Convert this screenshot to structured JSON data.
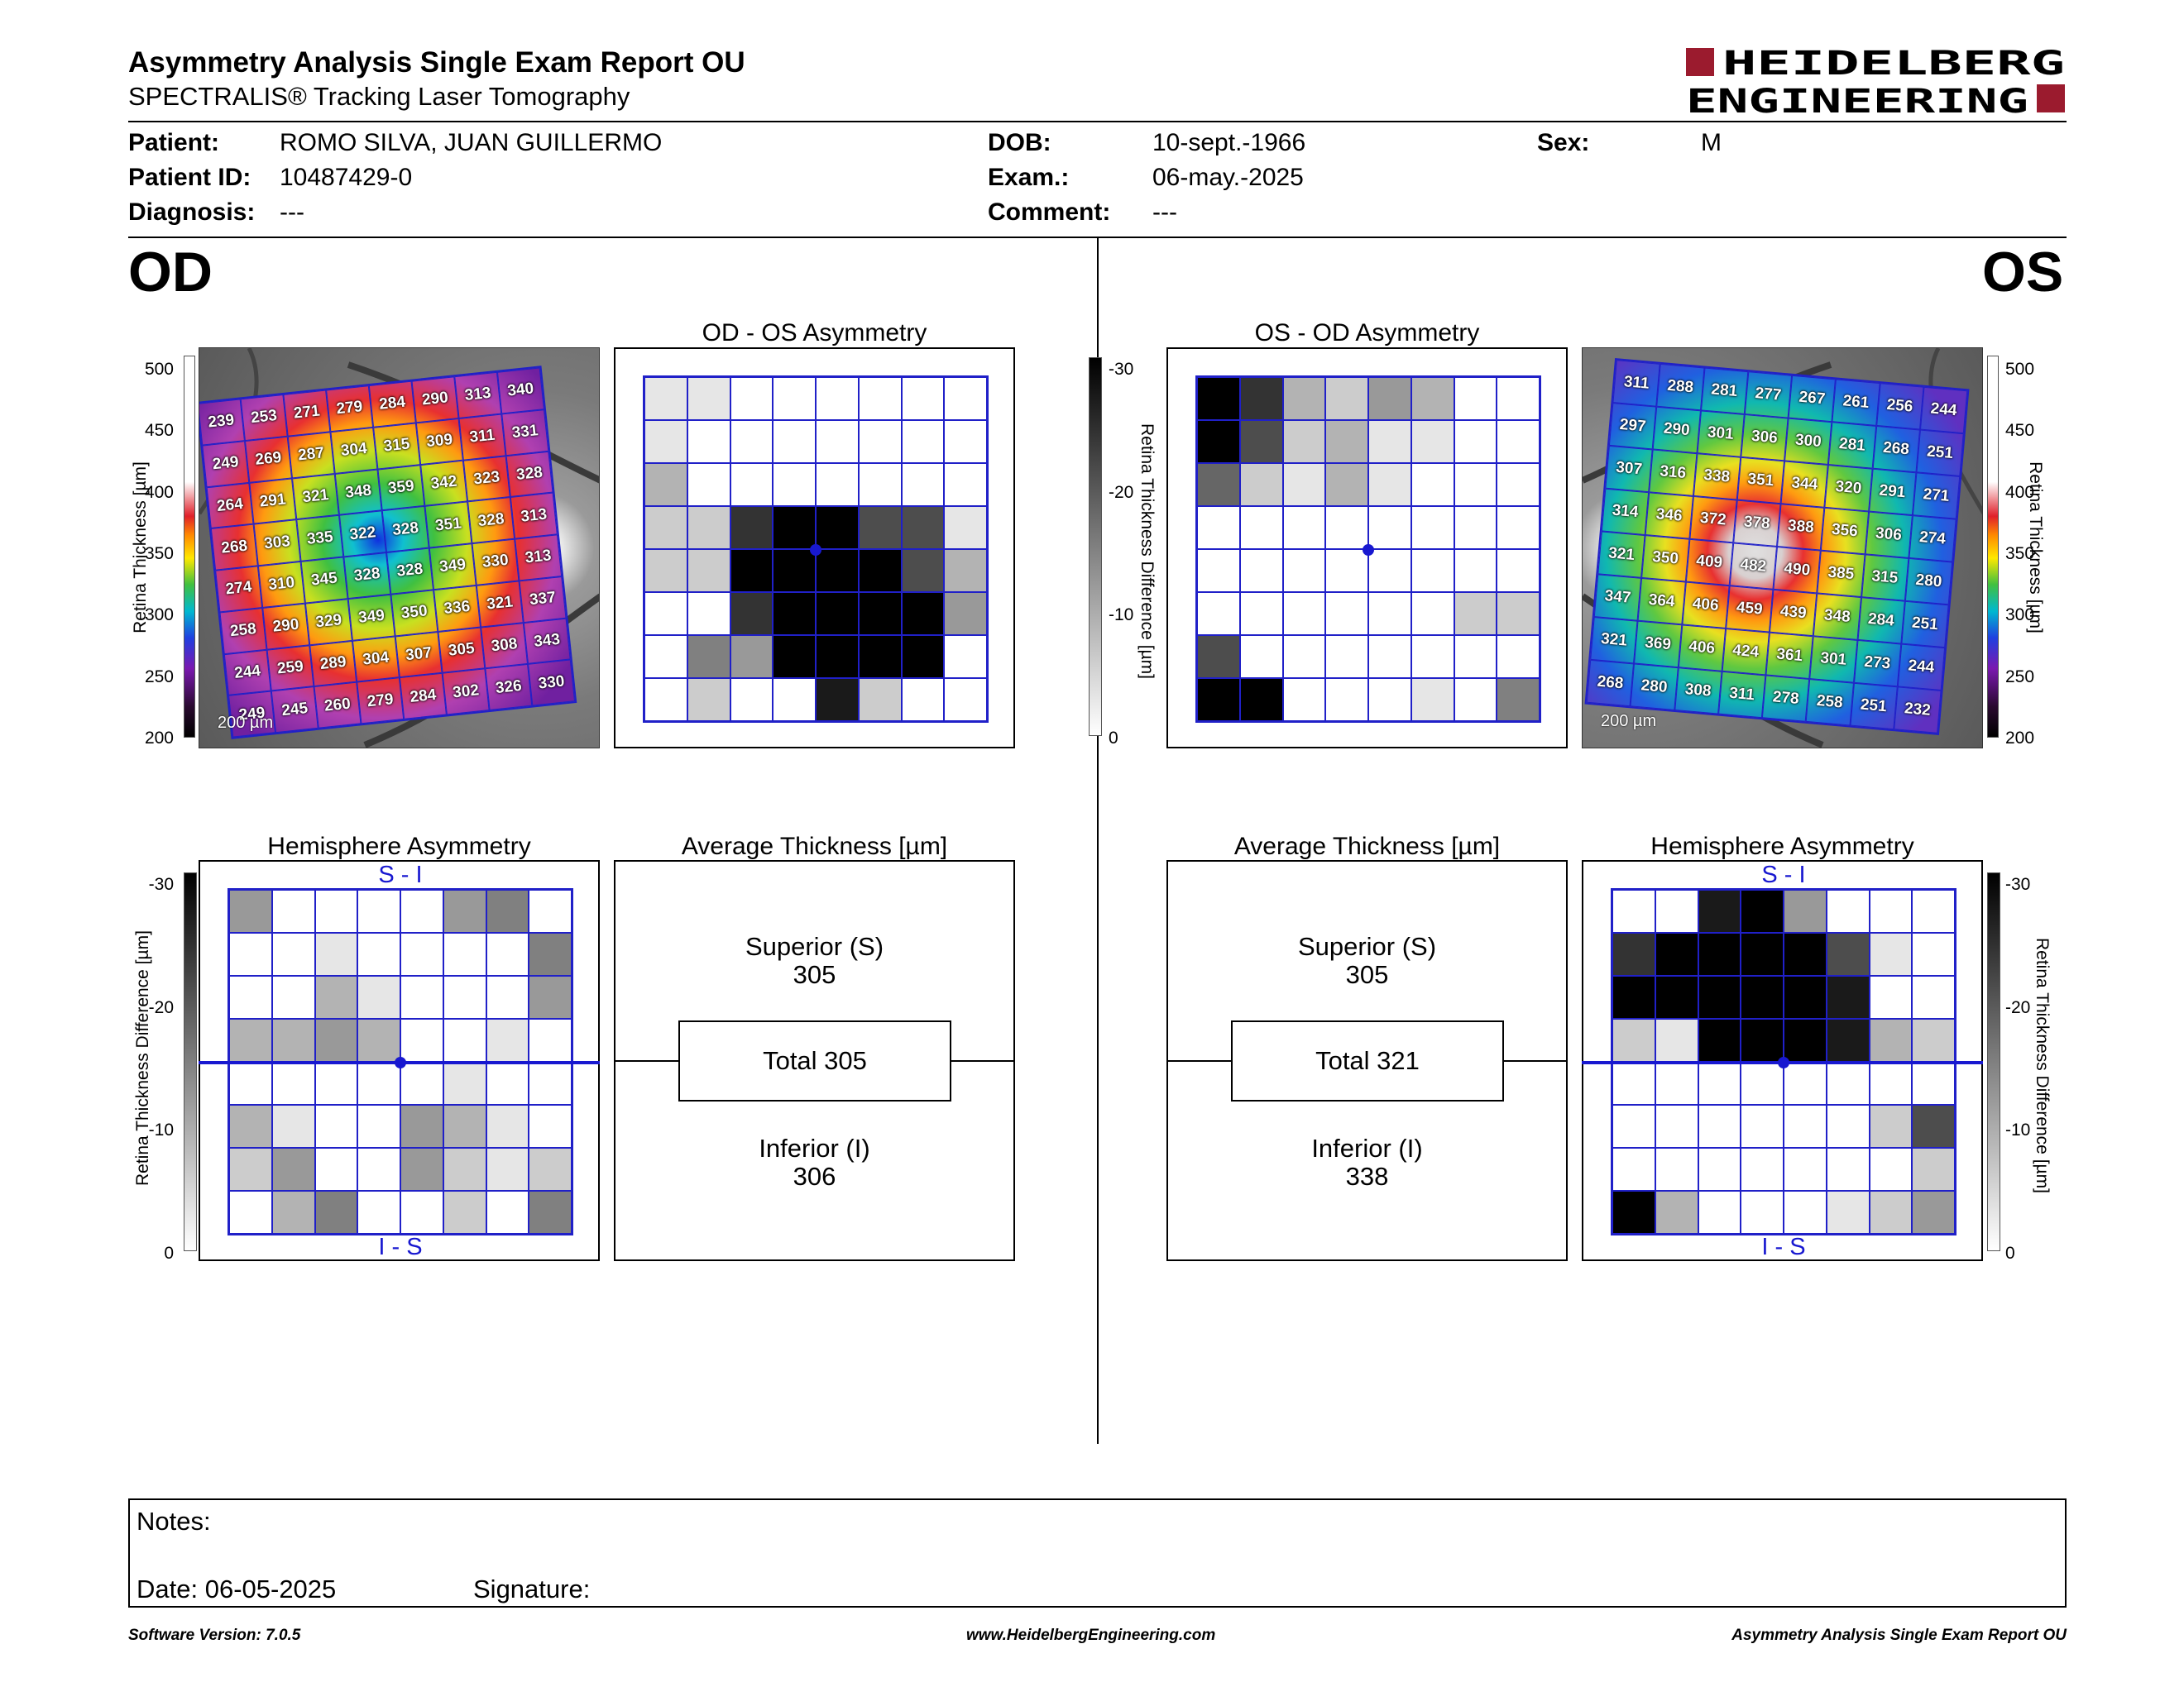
{
  "header": {
    "title": "Asymmetry Analysis Single Exam Report OU",
    "subtitle": "SPECTRALIS® Tracking Laser Tomography",
    "logo_line1": "HEIDELBERG",
    "logo_line2": "ENGINEERING"
  },
  "patient": {
    "patient_label": "Patient:",
    "patient_value": "ROMO SILVA, JUAN GUILLERMO",
    "dob_label": "DOB:",
    "dob_value": "10-sept.-1966",
    "sex_label": "Sex:",
    "sex_value": "M",
    "id_label": "Patient ID:",
    "id_value": "10487429-0",
    "exam_label": "Exam.:",
    "exam_value": "06-may.-2025",
    "diagnosis_label": "Diagnosis:",
    "diagnosis_value": "---",
    "comment_label": "Comment:",
    "comment_value": "---"
  },
  "od": {
    "eye_label": "OD",
    "thickness_axis_label": "Retina Thickness [µm]",
    "thickness_ticks": [
      "500",
      "450",
      "400",
      "350",
      "300",
      "250",
      "200"
    ],
    "scale_label": "200 µm",
    "thickness_map": [
      [
        239,
        253,
        271,
        279,
        284,
        290,
        313,
        340
      ],
      [
        249,
        269,
        287,
        304,
        315,
        309,
        311,
        331
      ],
      [
        264,
        291,
        321,
        348,
        359,
        342,
        323,
        328
      ],
      [
        268,
        303,
        335,
        322,
        328,
        351,
        328,
        313
      ],
      [
        274,
        310,
        345,
        328,
        328,
        349,
        330,
        313
      ],
      [
        258,
        290,
        329,
        349,
        350,
        336,
        321,
        337
      ],
      [
        244,
        259,
        289,
        304,
        307,
        305,
        308,
        343
      ],
      [
        249,
        245,
        260,
        279,
        284,
        302,
        326,
        330
      ]
    ],
    "asym_title": "OD - OS Asymmetry",
    "asym_grid": [
      [
        1,
        1,
        0,
        0,
        0,
        0,
        0,
        0
      ],
      [
        1,
        0,
        0,
        0,
        0,
        0,
        0,
        0
      ],
      [
        3,
        0,
        0,
        0,
        0,
        0,
        0,
        0
      ],
      [
        2,
        2,
        8,
        10,
        10,
        7,
        7,
        1
      ],
      [
        2,
        2,
        10,
        10,
        10,
        10,
        7,
        3
      ],
      [
        0,
        0,
        8,
        10,
        10,
        10,
        10,
        4
      ],
      [
        0,
        5,
        4,
        10,
        10,
        10,
        10,
        0
      ],
      [
        0,
        2,
        0,
        0,
        9,
        2,
        0,
        0
      ]
    ],
    "hemi_title": "Hemisphere Asymmetry",
    "hemi_top": "S - I",
    "hemi_bottom": "I - S",
    "hemi_grid": [
      [
        4,
        0,
        0,
        0,
        0,
        4,
        5,
        0
      ],
      [
        0,
        0,
        1,
        0,
        0,
        0,
        0,
        5
      ],
      [
        0,
        0,
        3,
        1,
        0,
        0,
        0,
        4
      ],
      [
        3,
        3,
        4,
        3,
        0,
        0,
        1,
        0
      ],
      [
        0,
        0,
        0,
        0,
        0,
        1,
        0,
        0
      ],
      [
        3,
        1,
        0,
        0,
        4,
        3,
        1,
        0
      ],
      [
        2,
        4,
        0,
        0,
        4,
        2,
        1,
        2
      ],
      [
        0,
        3,
        5,
        0,
        0,
        2,
        0,
        5
      ]
    ],
    "avg_title": "Average Thickness [µm]",
    "superior_label": "Superior (S)",
    "superior_value": "305",
    "total_label": "Total 305",
    "inferior_label": "Inferior (I)",
    "inferior_value": "306"
  },
  "os": {
    "eye_label": "OS",
    "thickness_axis_label": "Retina Thickness [µm]",
    "thickness_ticks": [
      "500",
      "450",
      "400",
      "350",
      "300",
      "250",
      "200"
    ],
    "scale_label": "200 µm",
    "thickness_map": [
      [
        311,
        288,
        281,
        277,
        267,
        261,
        256,
        244
      ],
      [
        297,
        290,
        301,
        306,
        300,
        281,
        268,
        251
      ],
      [
        307,
        316,
        338,
        351,
        344,
        320,
        291,
        271
      ],
      [
        314,
        346,
        372,
        378,
        388,
        356,
        306,
        274
      ],
      [
        321,
        350,
        409,
        482,
        490,
        385,
        315,
        280
      ],
      [
        347,
        364,
        406,
        459,
        439,
        348,
        284,
        251
      ],
      [
        321,
        369,
        406,
        424,
        361,
        301,
        273,
        244
      ],
      [
        268,
        280,
        308,
        311,
        278,
        258,
        251,
        232
      ]
    ],
    "asym_title": "OS - OD Asymmetry",
    "asym_grid": [
      [
        10,
        8,
        3,
        2,
        4,
        3,
        0,
        0
      ],
      [
        10,
        7,
        2,
        3,
        1,
        1,
        0,
        0
      ],
      [
        6,
        2,
        1,
        3,
        1,
        0,
        0,
        0
      ],
      [
        0,
        0,
        0,
        0,
        0,
        0,
        0,
        0
      ],
      [
        0,
        0,
        0,
        0,
        0,
        0,
        0,
        0
      ],
      [
        0,
        0,
        0,
        0,
        0,
        0,
        2,
        2
      ],
      [
        7,
        0,
        0,
        0,
        0,
        0,
        0,
        0
      ],
      [
        10,
        10,
        0,
        0,
        0,
        1,
        0,
        5
      ]
    ],
    "hemi_title": "Hemisphere Asymmetry",
    "hemi_top": "S - I",
    "hemi_bottom": "I - S",
    "hemi_grid": [
      [
        0,
        0,
        9,
        10,
        4,
        0,
        0,
        0
      ],
      [
        8,
        10,
        10,
        10,
        10,
        7,
        1,
        0
      ],
      [
        10,
        10,
        10,
        10,
        10,
        9,
        0,
        0
      ],
      [
        2,
        1,
        10,
        10,
        10,
        9,
        3,
        2
      ],
      [
        0,
        0,
        0,
        0,
        0,
        0,
        0,
        0
      ],
      [
        0,
        0,
        0,
        0,
        0,
        0,
        2,
        7
      ],
      [
        0,
        0,
        0,
        0,
        0,
        0,
        0,
        2
      ],
      [
        10,
        3,
        0,
        0,
        0,
        1,
        2,
        4
      ]
    ],
    "avg_title": "Average Thickness [µm]",
    "superior_label": "Superior (S)",
    "superior_value": "305",
    "total_label": "Total 321",
    "inferior_label": "Inferior (I)",
    "inferior_value": "338"
  },
  "difference_scale": {
    "axis_label": "Retina Thickness Difference [µm]",
    "ticks": [
      "-30",
      "-20",
      "-10",
      "0"
    ]
  },
  "notes": {
    "notes_label": "Notes:",
    "date_label": "Date: 06-05-2025",
    "signature_label": "Signature:"
  },
  "footer": {
    "software": "Software Version: 7.0.5",
    "website": "www.HeidelbergEngineering.com",
    "report": "Asymmetry Analysis Single Exam Report OU"
  },
  "colors": {
    "grid_line": "#2020c8",
    "logo_red": "#9b1b2e"
  }
}
